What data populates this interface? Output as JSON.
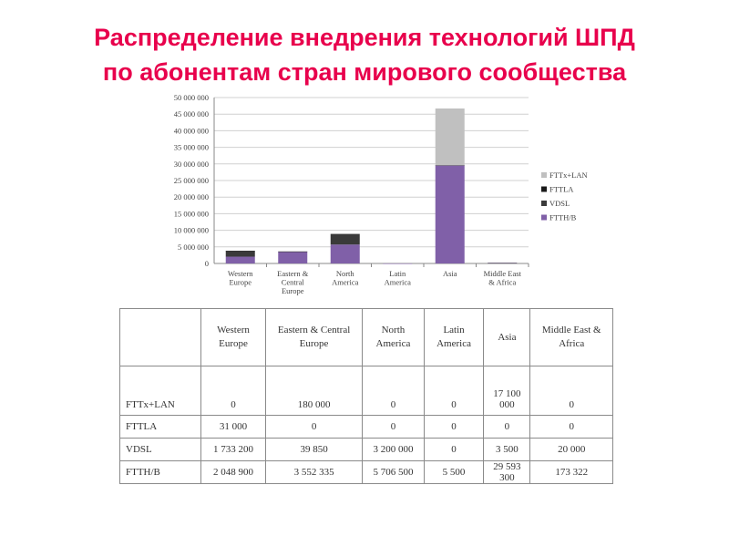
{
  "title": {
    "line1": "Распределение внедрения технологий ШПД",
    "line2": "по абонентам стран мирового сообщества"
  },
  "colors": {
    "title": "#e8004c",
    "fttx_lan": "#c0c0c0",
    "fttla": "#1a1a1a",
    "vdsl": "#3a3a3a",
    "ftth_b": "#8060a8"
  },
  "chart_data": {
    "type": "bar",
    "stacked": true,
    "categories": [
      "Western Europe",
      "Eastern & Central Europe",
      "North America",
      "Latin America",
      "Asia",
      "Middle East & Africa"
    ],
    "category_labels": [
      [
        "Western",
        "Europe"
      ],
      [
        "Eastern &",
        "Central",
        "Europe"
      ],
      [
        "North",
        "America"
      ],
      [
        "Latin",
        "America"
      ],
      [
        "Asia"
      ],
      [
        "Middle East",
        "& Africa"
      ]
    ],
    "series": [
      {
        "name": "FTTH/B",
        "color": "#8060a8",
        "values": [
          2048900,
          3552335,
          5706500,
          5500,
          29593300,
          173322
        ]
      },
      {
        "name": "VDSL",
        "color": "#3a3a3a",
        "values": [
          1733200,
          39850,
          3200000,
          0,
          3500,
          20000
        ]
      },
      {
        "name": "FTTLA",
        "color": "#1a1a1a",
        "values": [
          31000,
          0,
          0,
          0,
          0,
          0
        ]
      },
      {
        "name": "FTTx+LAN",
        "color": "#c0c0c0",
        "values": [
          0,
          180000,
          0,
          0,
          17100000,
          0
        ]
      }
    ],
    "legend_order": [
      "FTTx+LAN",
      "FTTLA",
      "VDSL",
      "FTTH/B"
    ],
    "ylim": [
      0,
      50000000
    ],
    "yticks": [
      "0",
      "5 000 000",
      "10 000 000",
      "15 000 000",
      "20 000 000",
      "25 000 000",
      "30 000 000",
      "35 000 000",
      "40 000 000",
      "45 000 000",
      "50 000 000"
    ],
    "grid": true,
    "legend_position": "right"
  },
  "table": {
    "header": [
      "",
      "Western Europe",
      "Eastern & Central Europe",
      "North America",
      "Latin America",
      "Asia",
      "Middle East & Africa"
    ],
    "rows": [
      [
        "FTTx+LAN",
        "0",
        "180 000",
        "0",
        "0",
        "17 100 000",
        "0"
      ],
      [
        "FTTLA",
        "31 000",
        "0",
        "0",
        "0",
        "0",
        "0"
      ],
      [
        "VDSL",
        "1 733 200",
        "39 850",
        "3 200 000",
        "0",
        "3 500",
        "20 000"
      ],
      [
        "FTTH/B",
        "2 048 900",
        "3 552 335",
        "5 706 500",
        "5 500",
        "29 593 300",
        "173 322"
      ]
    ]
  }
}
